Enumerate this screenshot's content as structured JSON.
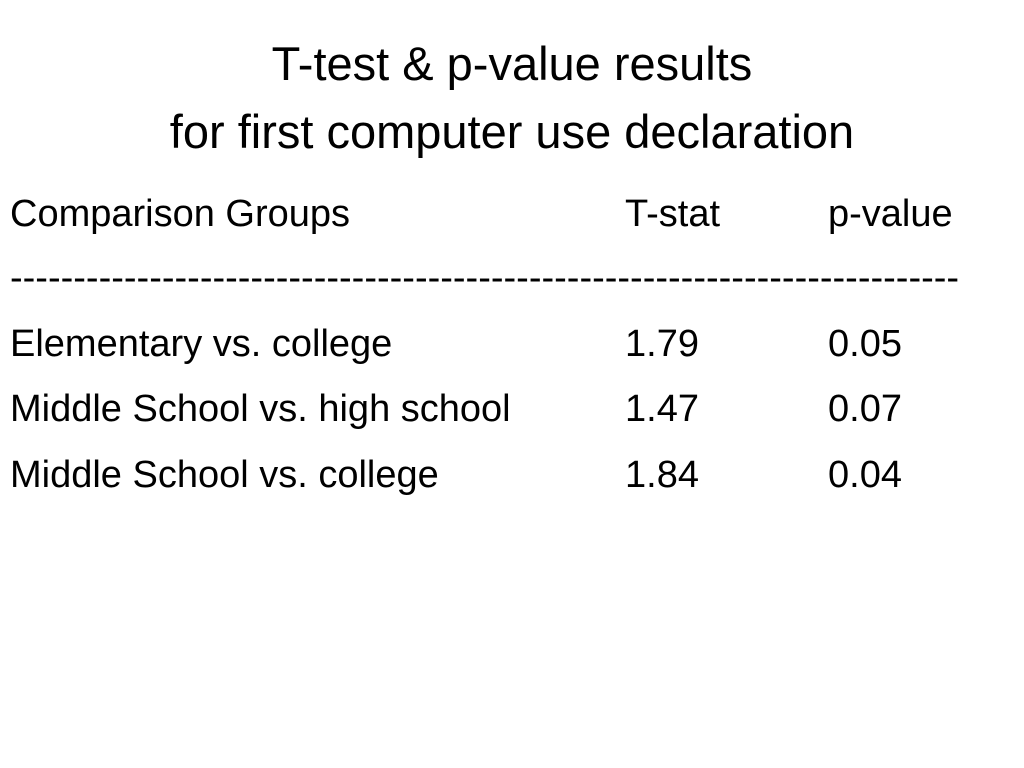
{
  "header": {
    "title": [
      "T-test & p-value results",
      "for first computer use declaration"
    ]
  },
  "table": {
    "columns": [
      "Comparison Groups",
      "T-stat",
      "p-value"
    ],
    "separator": "---------------------------------------------------------------------------",
    "rows": [
      [
        "Elementary vs. college",
        "1.79",
        "0.05"
      ],
      [
        "Middle School vs. high school",
        "1.47",
        "0.07"
      ],
      [
        "Middle School vs. college",
        "1.84",
        "0.04"
      ]
    ]
  }
}
